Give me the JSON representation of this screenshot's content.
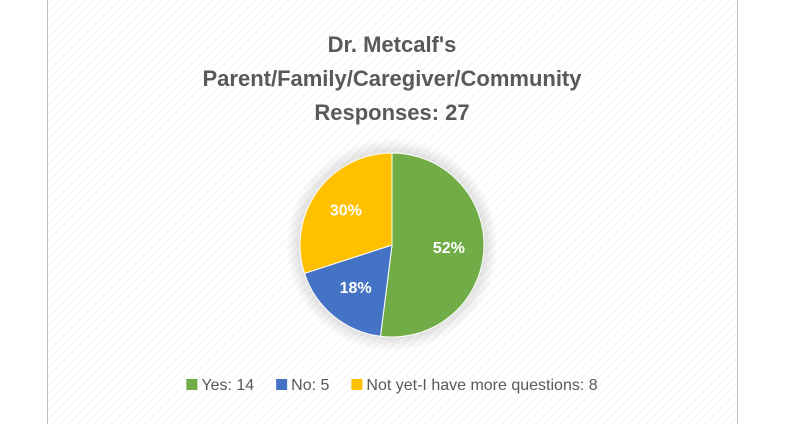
{
  "chart_data": {
    "type": "pie",
    "title": [
      "Dr. Metcalf's",
      "Parent/Family/Caregiver/Community",
      "Responses: 27"
    ],
    "categories": [
      "Yes: 14",
      "No: 5",
      "Not yet-I have more questions: 8"
    ],
    "values": [
      52,
      18,
      30
    ],
    "value_labels": [
      "52%",
      "18%",
      "30%"
    ],
    "colors": [
      "#70ad47",
      "#4472c4",
      "#ffc000"
    ],
    "legend": "bottom"
  }
}
